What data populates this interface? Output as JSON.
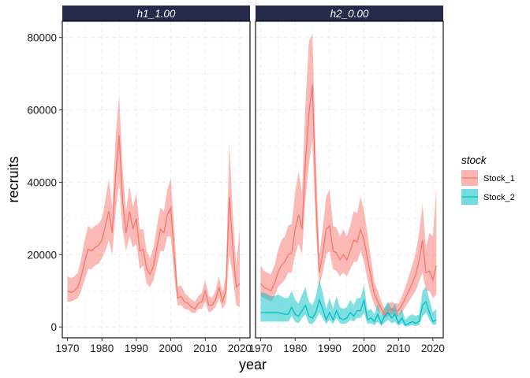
{
  "chart_data": {
    "type": "area",
    "xlabel": "year",
    "ylabel": "recruits",
    "x_ticks": [
      1970,
      1980,
      1990,
      2000,
      2010,
      2020
    ],
    "y_ticks": [
      0,
      20000,
      40000,
      60000,
      80000
    ],
    "y_tick_labels": [
      "0",
      "20000",
      "40000",
      "60000",
      "80000"
    ],
    "xlim": [
      1968.5,
      2023
    ],
    "ylim": [
      -3000,
      84500
    ],
    "grid": true,
    "legend_position": "right",
    "legend": {
      "title": "stock",
      "entries": [
        {
          "name": "Stock_1",
          "line": "#F8766D",
          "fill": "#F8766D"
        },
        {
          "name": "Stock_2",
          "line": "#00BFC4",
          "fill": "#00BFC4"
        }
      ]
    },
    "colors": {
      "strip_bg": "#252a4a",
      "grid": "#ebebeb",
      "stock_1": "#F8766D",
      "stock_2": "#00BFC4"
    },
    "facets": [
      {
        "label": "h1_1.00",
        "series": [
          {
            "name": "Stock_1",
            "x": [
              1970,
              1971,
              1972,
              1973,
              1974,
              1975,
              1976,
              1977,
              1978,
              1979,
              1980,
              1981,
              1982,
              1983,
              1984,
              1985,
              1986,
              1987,
              1988,
              1989,
              1990,
              1991,
              1992,
              1993,
              1994,
              1995,
              1996,
              1997,
              1998,
              1999,
              2000,
              2001,
              2002,
              2003,
              2004,
              2005,
              2006,
              2007,
              2008,
              2009,
              2010,
              2011,
              2012,
              2013,
              2014,
              2015,
              2016,
              2017,
              2018,
              2019,
              2020
            ],
            "mid": [
              10000,
              9500,
              10000,
              11000,
              14000,
              18000,
              21500,
              21000,
              22000,
              22500,
              24000,
              28000,
              32000,
              26000,
              42000,
              53000,
              35000,
              26000,
              32000,
              27000,
              30000,
              21000,
              21500,
              16000,
              14500,
              17000,
              22000,
              27000,
              26000,
              31000,
              33000,
              20000,
              8000,
              8500,
              7000,
              6500,
              5500,
              5000,
              6500,
              7000,
              10000,
              6000,
              6000,
              7500,
              11000,
              7000,
              10000,
              36000,
              22000,
              11000,
              12000
            ],
            "lo": [
              7000,
              7000,
              7500,
              8000,
              10000,
              13000,
              16000,
              16000,
              17000,
              17500,
              19000,
              21000,
              24000,
              20000,
              32000,
              40000,
              27000,
              21000,
              25000,
              22000,
              23000,
              16000,
              17000,
              12000,
              11000,
              13000,
              17000,
              21000,
              21000,
              25000,
              25000,
              14000,
              6000,
              6000,
              5000,
              4800,
              4000,
              3800,
              5000,
              5000,
              7000,
              4000,
              4500,
              5500,
              8000,
              5000,
              6500,
              20000,
              14000,
              6000,
              5500
            ],
            "hi": [
              14000,
              13500,
              14000,
              15000,
              19000,
              24000,
              28000,
              27000,
              28000,
              28500,
              30000,
              35000,
              41000,
              33000,
              53000,
              64000,
              44000,
              32000,
              39000,
              33000,
              37000,
              27000,
              27000,
              21000,
              19000,
              22000,
              28000,
              33000,
              32000,
              38000,
              41000,
              27000,
              11000,
              11500,
              9500,
              8500,
              7500,
              7000,
              8500,
              9500,
              13000,
              8500,
              8000,
              10000,
              14000,
              9500,
              14000,
              51000,
              31000,
              17000,
              27000
            ]
          }
        ]
      },
      {
        "label": "h2_0.00",
        "series": [
          {
            "name": "Stock_1",
            "x": [
              1970,
              1971,
              1972,
              1973,
              1974,
              1975,
              1976,
              1977,
              1978,
              1979,
              1980,
              1981,
              1982,
              1983,
              1984,
              1985,
              1986,
              1987,
              1988,
              1989,
              1990,
              1991,
              1992,
              1993,
              1994,
              1995,
              1996,
              1997,
              1998,
              1999,
              2000,
              2001,
              2002,
              2003,
              2004,
              2005,
              2006,
              2007,
              2008,
              2009,
              2010,
              2011,
              2012,
              2013,
              2014,
              2015,
              2016,
              2017,
              2018,
              2019,
              2020,
              2021
            ],
            "mid": [
              12000,
              11000,
              10500,
              10000,
              12000,
              15000,
              17000,
              18000,
              20000,
              20500,
              27000,
              31000,
              27000,
              46000,
              59000,
              67000,
              36000,
              15000,
              20000,
              27000,
              28000,
              21000,
              20500,
              18500,
              20000,
              18500,
              21000,
              24000,
              23500,
              27000,
              24000,
              19000,
              14000,
              9000,
              7000,
              5000,
              3500,
              4500,
              5000,
              4500,
              4500,
              6000,
              8000,
              10000,
              12000,
              14500,
              18500,
              24000,
              15000,
              15500,
              13000,
              17000
            ],
            "lo": [
              8500,
              8000,
              7500,
              7000,
              8500,
              11000,
              12000,
              13000,
              15000,
              15000,
              20000,
              23000,
              20000,
              35000,
              45000,
              52000,
              27000,
              11000,
              15000,
              20000,
              21000,
              16000,
              15500,
              14000,
              15000,
              14000,
              16000,
              18000,
              18000,
              21000,
              18000,
              13000,
              9000,
              6000,
              4500,
              3500,
              2500,
              3000,
              3500,
              3000,
              3000,
              4000,
              5500,
              7000,
              8500,
              10000,
              12500,
              15000,
              10000,
              10000,
              8000,
              9000
            ],
            "hi": [
              17000,
              15500,
              15000,
              14500,
              17000,
              21000,
              24000,
              25000,
              28000,
              28500,
              37000,
              43000,
              37000,
              62000,
              79000,
              81000,
              48000,
              20000,
              27000,
              36000,
              38000,
              28000,
              27500,
              25000,
              27000,
              25000,
              28000,
              32000,
              31500,
              36000,
              32000,
              26000,
              19000,
              12500,
              10000,
              7000,
              5000,
              6500,
              7000,
              6500,
              6500,
              8500,
              11000,
              14000,
              17000,
              20500,
              26000,
              34000,
              22000,
              26000,
              25000,
              38500
            ]
          },
          {
            "name": "Stock_2",
            "x": [
              1970,
              1971,
              1972,
              1973,
              1974,
              1975,
              1976,
              1977,
              1978,
              1979,
              1980,
              1981,
              1982,
              1983,
              1984,
              1985,
              1986,
              1987,
              1988,
              1989,
              1990,
              1991,
              1992,
              1993,
              1994,
              1995,
              1996,
              1997,
              1998,
              1999,
              2000,
              2001,
              2002,
              2003,
              2004,
              2005,
              2006,
              2007,
              2008,
              2009,
              2010,
              2011,
              2012,
              2013,
              2014,
              2015,
              2016,
              2017,
              2018,
              2019,
              2020,
              2021
            ],
            "mid": [
              4000,
              4000,
              4000,
              4000,
              4000,
              4000,
              3800,
              3500,
              3500,
              5500,
              3500,
              3000,
              4500,
              6000,
              3000,
              2500,
              4000,
              7500,
              5000,
              2000,
              4000,
              2000,
              4500,
              2500,
              2000,
              2500,
              4000,
              3000,
              4500,
              4500,
              7500,
              2000,
              2500,
              1500,
              3500,
              1000,
              3000,
              4000,
              2500,
              3500,
              1000,
              2500,
              500,
              1000,
              1500,
              1000,
              1500,
              6000,
              7000,
              4000,
              1500,
              2000
            ],
            "lo": [
              1500,
              1500,
              1500,
              1500,
              1500,
              1500,
              1500,
              1500,
              1500,
              3000,
              1500,
              1000,
              2500,
              3500,
              1000,
              800,
              2000,
              4000,
              2500,
              800,
              2000,
              800,
              2500,
              1000,
              800,
              1000,
              2000,
              1500,
              2500,
              2500,
              4000,
              800,
              1000,
              500,
              1500,
              300,
              1200,
              2000,
              1000,
              1500,
              300,
              1000,
              100,
              300,
              500,
              300,
              500,
              3000,
              4000,
              2000,
              500,
              700
            ],
            "hi": [
              9500,
              9500,
              9000,
              8500,
              8500,
              9000,
              8500,
              8000,
              8000,
              10000,
              7500,
              6500,
              9000,
              11000,
              7000,
              6000,
              8500,
              13000,
              9500,
              5000,
              8000,
              5000,
              8500,
              5500,
              5000,
              5500,
              7500,
              6000,
              8000,
              8000,
              11500,
              4500,
              5000,
              3500,
              6500,
              3000,
              5500,
              7000,
              5000,
              6500,
              3000,
              5000,
              2000,
              3000,
              3500,
              3000,
              3500,
              10000,
              11000,
              7500,
              4000,
              5000
            ]
          }
        ]
      }
    ]
  }
}
